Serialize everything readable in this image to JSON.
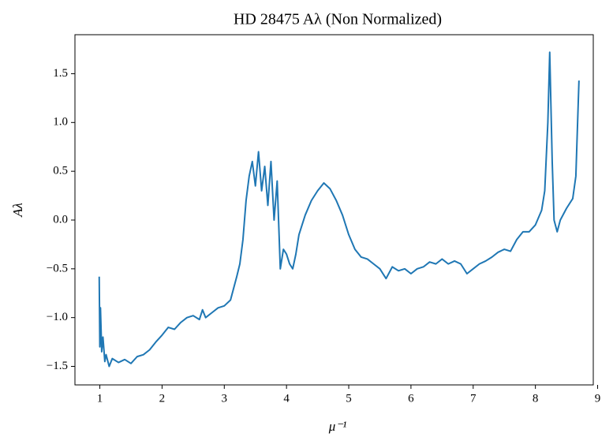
{
  "chart_data": {
    "type": "line",
    "title": "HD 28475 Aλ (Non Normalized)",
    "xlabel": "μ⁻¹",
    "ylabel": "Aλ",
    "x": [
      0.99,
      1.0,
      1.01,
      1.03,
      1.05,
      1.08,
      1.1,
      1.15,
      1.2,
      1.3,
      1.4,
      1.5,
      1.6,
      1.7,
      1.8,
      1.9,
      2.0,
      2.1,
      2.2,
      2.3,
      2.4,
      2.5,
      2.6,
      2.65,
      2.7,
      2.8,
      2.9,
      3.0,
      3.1,
      3.15,
      3.2,
      3.25,
      3.3,
      3.35,
      3.4,
      3.45,
      3.5,
      3.55,
      3.6,
      3.65,
      3.7,
      3.75,
      3.8,
      3.85,
      3.9,
      3.95,
      4.0,
      4.05,
      4.1,
      4.15,
      4.2,
      4.3,
      4.4,
      4.5,
      4.6,
      4.7,
      4.8,
      4.9,
      5.0,
      5.1,
      5.2,
      5.3,
      5.4,
      5.5,
      5.6,
      5.7,
      5.8,
      5.9,
      6.0,
      6.1,
      6.2,
      6.3,
      6.4,
      6.5,
      6.6,
      6.7,
      6.8,
      6.9,
      7.0,
      7.1,
      7.2,
      7.3,
      7.4,
      7.5,
      7.6,
      7.7,
      7.8,
      7.9,
      8.0,
      8.1,
      8.15,
      8.2,
      8.23,
      8.27,
      8.3,
      8.35,
      8.4,
      8.5,
      8.6,
      8.65,
      8.7
    ],
    "series": [
      {
        "color": "#1f77b4",
        "values": [
          -0.58,
          -1.3,
          -0.9,
          -1.35,
          -1.2,
          -1.45,
          -1.38,
          -1.5,
          -1.42,
          -1.46,
          -1.43,
          -1.47,
          -1.4,
          -1.38,
          -1.33,
          -1.25,
          -1.18,
          -1.1,
          -1.12,
          -1.05,
          -1.0,
          -0.98,
          -1.02,
          -0.92,
          -1.0,
          -0.95,
          -0.9,
          -0.88,
          -0.82,
          -0.7,
          -0.58,
          -0.45,
          -0.2,
          0.2,
          0.45,
          0.6,
          0.35,
          0.7,
          0.3,
          0.55,
          0.15,
          0.6,
          0.0,
          0.4,
          -0.5,
          -0.3,
          -0.35,
          -0.45,
          -0.5,
          -0.35,
          -0.15,
          0.05,
          0.2,
          0.3,
          0.38,
          0.32,
          0.2,
          0.05,
          -0.15,
          -0.3,
          -0.38,
          -0.4,
          -0.45,
          -0.5,
          -0.6,
          -0.48,
          -0.52,
          -0.5,
          -0.55,
          -0.5,
          -0.48,
          -0.43,
          -0.45,
          -0.4,
          -0.45,
          -0.42,
          -0.45,
          -0.55,
          -0.5,
          -0.45,
          -0.42,
          -0.38,
          -0.33,
          -0.3,
          -0.32,
          -0.2,
          -0.12,
          -0.12,
          -0.05,
          0.1,
          0.3,
          1.0,
          1.72,
          0.6,
          0.0,
          -0.12,
          0.0,
          0.12,
          0.22,
          0.45,
          1.43
        ]
      }
    ],
    "xlim": [
      0.6,
      8.93
    ],
    "ylim": [
      -1.69,
      1.9
    ],
    "xticks": [
      1,
      2,
      3,
      4,
      5,
      6,
      7,
      8,
      9
    ],
    "yticks": [
      {
        "value": -1.5,
        "label": "−1.5"
      },
      {
        "value": -1.0,
        "label": "−1.0"
      },
      {
        "value": -0.5,
        "label": "−0.5"
      },
      {
        "value": 0,
        "label": "0.0"
      },
      0.5,
      {
        "value": 1.0,
        "label": "1.0"
      },
      1.5
    ]
  }
}
